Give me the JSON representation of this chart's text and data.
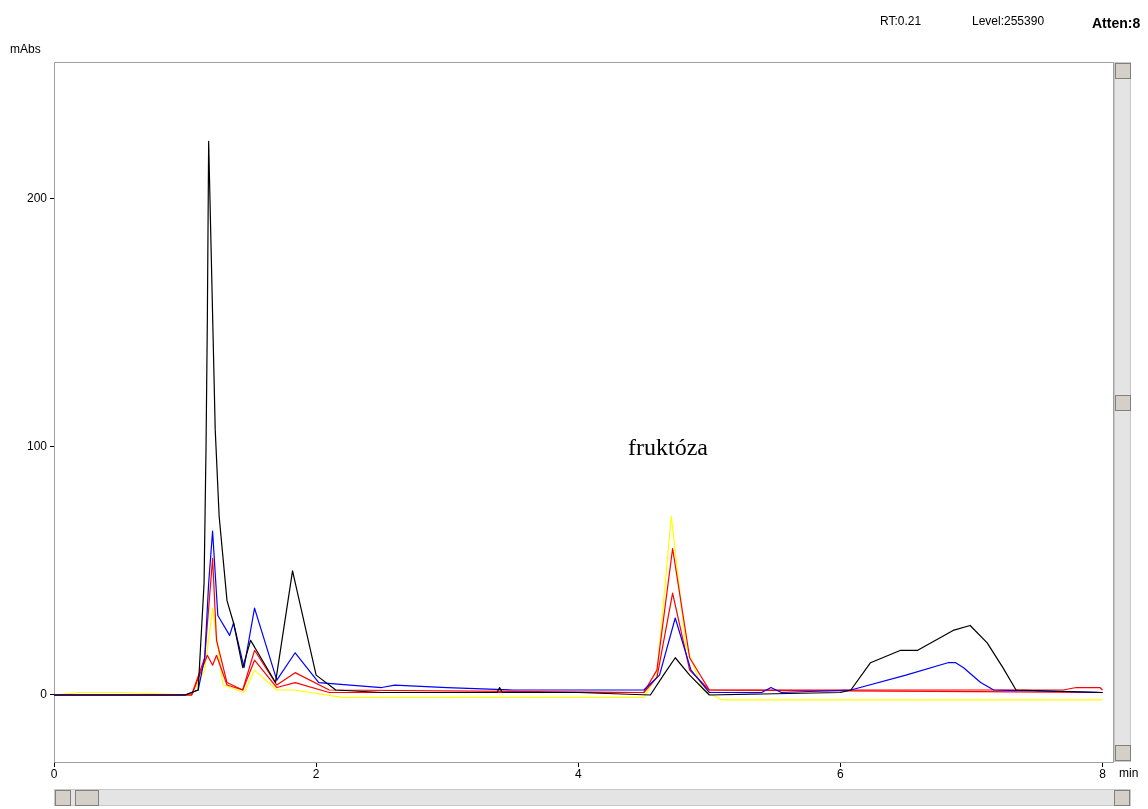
{
  "chart_data": {
    "type": "line",
    "xlabel": "min",
    "ylabel": "mAbs",
    "annotations": [
      "RT:0.21",
      "Level:255390",
      "Atten:8",
      "fruktóza"
    ],
    "xlim": [
      0,
      8.08
    ],
    "xticks": [
      0,
      2,
      4,
      6,
      8
    ],
    "ylim": [
      -27,
      255
    ],
    "yticks": [
      0,
      100,
      200
    ],
    "grid": false,
    "legend": false,
    "marker": "none",
    "line_style": "solid",
    "series": [
      {
        "color": "#000000",
        "x": [
          0,
          1.0,
          1.1,
          1.145,
          1.16,
          1.17,
          1.18,
          1.23,
          1.26,
          1.32,
          1.37,
          1.44,
          1.5,
          1.69,
          1.82,
          2.0,
          2.15,
          2.5,
          3.38,
          3.4,
          3.42,
          4.0,
          4.55,
          4.65,
          4.74,
          4.85,
          5.0,
          6.0,
          6.08,
          6.23,
          6.46,
          6.59,
          6.86,
          6.99,
          7.12,
          7.24,
          7.34,
          8.0
        ],
        "values": [
          0,
          0,
          2,
          45,
          100,
          151,
          223,
          107,
          72,
          38,
          29,
          11,
          22,
          5,
          50,
          8,
          2,
          1,
          1,
          3,
          1,
          1,
          0,
          8,
          15,
          8,
          0,
          1,
          2,
          13,
          18,
          18,
          26,
          28,
          21,
          11,
          2,
          1
        ]
      },
      {
        "color": "#0000ff",
        "x": [
          0,
          1.0,
          1.1,
          1.15,
          1.18,
          1.21,
          1.25,
          1.34,
          1.37,
          1.45,
          1.53,
          1.7,
          1.84,
          2.02,
          2.5,
          2.6,
          3.0,
          3.5,
          4.0,
          4.5,
          4.62,
          4.74,
          4.86,
          5.0,
          5.4,
          5.47,
          5.55,
          6.08,
          6.5,
          6.82,
          6.88,
          6.94,
          7.07,
          7.17,
          8.0
        ],
        "values": [
          0,
          0,
          2,
          15,
          45,
          66,
          32,
          24,
          29,
          11,
          35,
          6,
          17,
          5,
          3,
          4,
          3,
          2,
          2,
          2,
          8,
          31,
          10,
          1,
          1,
          3,
          1,
          2,
          8,
          13,
          13,
          11,
          5,
          2,
          1
        ]
      },
      {
        "color": "#ff0000",
        "x": [
          0,
          1.05,
          1.15,
          1.21,
          1.24,
          1.32,
          1.44,
          1.53,
          1.7,
          1.84,
          2.1,
          4.5,
          4.6,
          4.72,
          4.85,
          5.0,
          7.7,
          7.8,
          7.98,
          8.0
        ],
        "values": [
          0,
          0,
          15,
          55,
          22,
          5,
          2,
          18,
          4,
          9,
          2,
          1,
          10,
          59,
          15,
          2,
          2,
          3,
          3,
          2
        ]
      },
      {
        "color": "#ff0000",
        "x": [
          0,
          1.05,
          1.17,
          1.21,
          1.24,
          1.32,
          1.44,
          1.53,
          1.7,
          1.84,
          2.1,
          4.5,
          4.6,
          4.72,
          4.85,
          5.0,
          8.0
        ],
        "values": [
          0,
          0,
          16,
          12,
          16,
          4,
          2,
          14,
          3,
          5,
          1,
          1,
          7,
          41,
          10,
          2,
          1
        ]
      },
      {
        "color": "#ffff00",
        "x": [
          0,
          0.2,
          0.5,
          1.05,
          1.15,
          1.21,
          1.29,
          1.45,
          1.53,
          1.7,
          1.83,
          2.2,
          4.5,
          4.6,
          4.71,
          4.82,
          4.95,
          5.1,
          8.0
        ],
        "values": [
          0,
          1,
          1,
          0,
          10,
          35,
          4,
          1,
          10,
          2,
          2,
          -1,
          -1,
          8,
          72,
          20,
          2,
          -2,
          -2
        ]
      }
    ]
  }
}
